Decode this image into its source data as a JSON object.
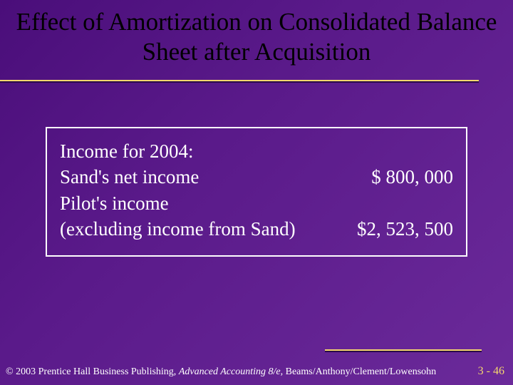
{
  "title": "Effect of Amortization on Consolidated Balance Sheet after Acquisition",
  "box": {
    "heading": "Income for 2004:",
    "row1_label": "Sand's net income",
    "row1_value": "$   800, 000",
    "row2_label1": "Pilot's income",
    "row2_label2": "(excluding income from Sand)",
    "row2_value": "$2, 523, 500"
  },
  "footer": {
    "prefix": "© 2003 Prentice Hall Business Publishing, ",
    "italic": "Advanced Accounting 8/e,",
    "suffix": " Beams/Anthony/Clement/Lowensohn",
    "page": "3 - 46"
  },
  "colors": {
    "accent": "#f5d76e",
    "title_color": "#000000",
    "text_color": "#ffffff",
    "box_border": "#ffffff"
  }
}
